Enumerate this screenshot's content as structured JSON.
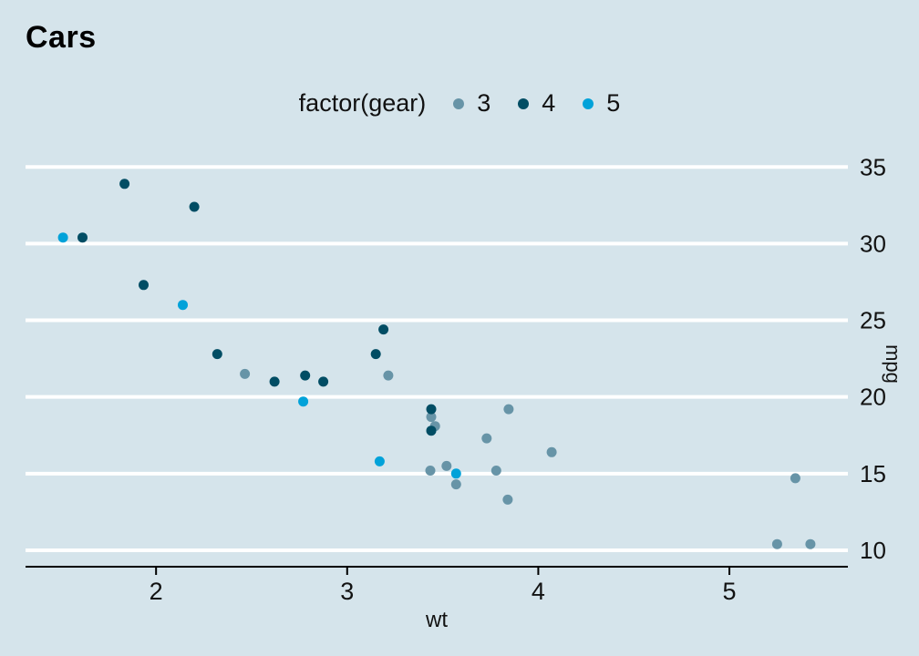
{
  "theme": {
    "background": "#d5e4eb",
    "grid_color": "#ffffff",
    "text_color": "#121212",
    "axis_color": "#000000"
  },
  "chart_data": {
    "type": "scatter",
    "title": "Cars",
    "xlabel": "wt",
    "ylabel": "mpg",
    "legend_title": "factor(gear)",
    "legend_position": "top-center",
    "grid": "horizontal-only",
    "x_ticks": [
      2,
      3,
      4,
      5
    ],
    "y_ticks": [
      10,
      15,
      20,
      25,
      30,
      35
    ],
    "xlim": [
      1.317,
      5.62
    ],
    "ylim": [
      9.225,
      35.075
    ],
    "series": [
      {
        "name": "3",
        "color": "#6794a7",
        "points": [
          [
            3.215,
            21.4
          ],
          [
            3.44,
            18.7
          ],
          [
            3.46,
            18.1
          ],
          [
            3.57,
            14.3
          ],
          [
            4.07,
            16.4
          ],
          [
            3.73,
            17.3
          ],
          [
            3.78,
            15.2
          ],
          [
            5.25,
            10.4
          ],
          [
            5.424,
            10.4
          ],
          [
            5.345,
            14.7
          ],
          [
            2.465,
            21.5
          ],
          [
            3.52,
            15.5
          ],
          [
            3.435,
            15.2
          ],
          [
            3.84,
            13.3
          ],
          [
            3.845,
            19.2
          ]
        ]
      },
      {
        "name": "4",
        "color": "#014d64",
        "points": [
          [
            2.62,
            21.0
          ],
          [
            2.875,
            21.0
          ],
          [
            2.32,
            22.8
          ],
          [
            3.19,
            24.4
          ],
          [
            3.15,
            22.8
          ],
          [
            3.44,
            19.2
          ],
          [
            3.44,
            17.8
          ],
          [
            2.2,
            32.4
          ],
          [
            1.615,
            30.4
          ],
          [
            1.835,
            33.9
          ],
          [
            1.935,
            27.3
          ],
          [
            2.78,
            21.4
          ]
        ]
      },
      {
        "name": "5",
        "color": "#01a2d9",
        "points": [
          [
            2.14,
            26.0
          ],
          [
            1.513,
            30.4
          ],
          [
            3.17,
            15.8
          ],
          [
            2.77,
            19.7
          ],
          [
            3.57,
            15.0
          ]
        ]
      }
    ]
  }
}
